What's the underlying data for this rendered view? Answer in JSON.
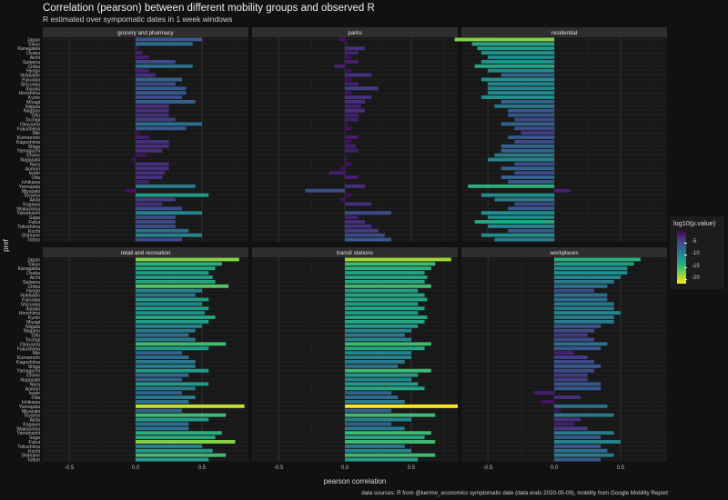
{
  "chart_data": {
    "type": "bar",
    "title": "Correlation (pearson) between different mobility groups and observed R",
    "subtitle": "R estimated over sympomatic dates in 1 week windows",
    "xlabel": "pearson correlation",
    "ylabel": "pref",
    "xlim": [
      -0.7,
      0.85
    ],
    "x_ticks": [
      -0.5,
      0.0,
      0.5
    ],
    "x_tick_labels": [
      "-0.5",
      "0.0",
      "0.5"
    ],
    "grid": true,
    "legend": {
      "title": "log10(p.value)",
      "placement": "right",
      "scale": "viridis",
      "range": [
        -22,
        0
      ],
      "ticks": [
        -5,
        -10,
        -15,
        -20
      ],
      "tick_labels": [
        "-5",
        "-10",
        "-15",
        "-20"
      ]
    },
    "caption": "data sources: R from @kenmo_economics symptomatic date (data ends 2020-05-09), mobility from Google Mobility Report",
    "categories": [
      "Japan",
      "Tokyo",
      "Kanagawa",
      "Osaka",
      "Aichi",
      "Saitama",
      "Chiba",
      "Hyogo",
      "Hokkaido",
      "Fukuoka",
      "Shizuoka",
      "Ibaraki",
      "Hiroshima",
      "Kyoto",
      "Miyagi",
      "Niigata",
      "Nagano",
      "Gifu",
      "Tochigi",
      "Okayama",
      "Fukushima",
      "Mie",
      "Kumamoto",
      "Kagoshima",
      "Shiga",
      "Yamaguchi",
      "Ehime",
      "Nagasaki",
      "Nara",
      "Aomori",
      "Iwate",
      "Oita",
      "Ishikawa",
      "Yamagata",
      "Miyazaki",
      "Toyama",
      "Akita",
      "Kagawa",
      "Wakayama",
      "Yamanashi",
      "Saga",
      "Fukui",
      "Tokushima",
      "Kochi",
      "Shimane",
      "Tottori"
    ],
    "panels": [
      {
        "name": "grocery and pharmacy",
        "values": [
          0.5,
          0.43,
          0.02,
          0.05,
          0.1,
          0.3,
          0.43,
          0.1,
          0.15,
          0.35,
          0.3,
          0.38,
          0.38,
          0.35,
          0.45,
          0.25,
          0.25,
          0.25,
          0.3,
          0.5,
          0.38,
          0.03,
          0.1,
          0.25,
          0.25,
          0.2,
          0.08,
          -0.03,
          0.25,
          0.25,
          0.22,
          0.2,
          0.1,
          0.45,
          -0.08,
          0.55,
          0.3,
          0.2,
          0.35,
          0.5,
          0.3,
          0.3,
          0.3,
          0.4,
          0.5,
          0.35
        ],
        "log10p": [
          -6,
          -8,
          -1,
          -2,
          -2,
          -5,
          -8,
          -2,
          -3,
          -7,
          -5,
          -6,
          -6,
          -5,
          -7,
          -3,
          -3,
          -3,
          -4,
          -8,
          -6,
          -1,
          -2,
          -3,
          -3,
          -3,
          -1,
          -1,
          -3,
          -3,
          -3,
          -3,
          -2,
          -9,
          -1,
          -12,
          -4,
          -3,
          -5,
          -10,
          -5,
          -5,
          -5,
          -8,
          -10,
          -5
        ]
      },
      {
        "name": "parks",
        "values": [
          -0.05,
          0.02,
          0.15,
          0.1,
          0.05,
          0.1,
          -0.08,
          0.05,
          0.2,
          0.05,
          0.1,
          0.25,
          0.05,
          0.2,
          0.15,
          0.12,
          0.15,
          0.1,
          0.1,
          0.02,
          0.05,
          0.0,
          0.1,
          0.05,
          0.08,
          0.1,
          0.0,
          0.02,
          0.05,
          -0.03,
          -0.12,
          0.1,
          0.0,
          0.15,
          -0.3,
          0.05,
          -0.03,
          0.2,
          0.0,
          0.35,
          0.1,
          0.15,
          0.2,
          0.25,
          0.3,
          0.35
        ],
        "log10p": [
          -1,
          -1,
          -3,
          -2,
          -1,
          -2,
          -2,
          -1,
          -3,
          -1,
          -2,
          -4,
          -1,
          -3,
          -3,
          -2,
          -3,
          -2,
          -2,
          -1,
          -1,
          -1,
          -2,
          -1,
          -2,
          -2,
          -1,
          -1,
          -1,
          -1,
          -2,
          -2,
          -1,
          -3,
          -5,
          -1,
          -1,
          -3,
          -1,
          -5,
          -2,
          -3,
          -3,
          -4,
          -5,
          -6
        ]
      },
      {
        "name": "residential",
        "values": [
          -0.75,
          -0.62,
          -0.58,
          -0.55,
          -0.5,
          -0.55,
          -0.6,
          -0.5,
          -0.4,
          -0.55,
          -0.5,
          -0.5,
          -0.5,
          -0.55,
          -0.4,
          -0.45,
          -0.35,
          -0.35,
          -0.3,
          -0.4,
          -0.3,
          -0.25,
          -0.35,
          -0.3,
          -0.4,
          -0.4,
          -0.45,
          -0.5,
          -0.3,
          -0.4,
          -0.3,
          -0.4,
          -0.35,
          -0.65,
          0.12,
          -0.55,
          -0.45,
          -0.3,
          -0.35,
          -0.55,
          -0.5,
          -0.6,
          -0.5,
          -0.35,
          -0.55,
          -0.45
        ],
        "log10p": [
          -18,
          -13,
          -12,
          -11,
          -10,
          -11,
          -13,
          -10,
          -7,
          -11,
          -10,
          -10,
          -10,
          -11,
          -7,
          -9,
          -6,
          -6,
          -5,
          -7,
          -5,
          -4,
          -6,
          -5,
          -7,
          -7,
          -9,
          -10,
          -5,
          -7,
          -5,
          -7,
          -6,
          -14,
          -2,
          -11,
          -9,
          -5,
          -6,
          -11,
          -10,
          -13,
          -10,
          -6,
          -11,
          -9
        ]
      },
      {
        "name": "retail and recreation",
        "values": [
          0.78,
          0.65,
          0.6,
          0.55,
          0.58,
          0.6,
          0.7,
          0.5,
          0.45,
          0.55,
          0.5,
          0.55,
          0.52,
          0.6,
          0.55,
          0.5,
          0.45,
          0.4,
          0.45,
          0.68,
          0.55,
          0.35,
          0.4,
          0.45,
          0.45,
          0.55,
          0.4,
          0.35,
          0.55,
          0.45,
          0.35,
          0.45,
          0.4,
          0.82,
          0.35,
          0.68,
          0.55,
          0.4,
          0.4,
          0.65,
          0.6,
          0.75,
          0.5,
          0.58,
          0.68,
          0.55
        ],
        "log10p": [
          -18,
          -14,
          -13,
          -12,
          -12,
          -13,
          -16,
          -10,
          -9,
          -12,
          -10,
          -12,
          -11,
          -13,
          -12,
          -10,
          -9,
          -8,
          -9,
          -15,
          -12,
          -7,
          -8,
          -9,
          -9,
          -12,
          -8,
          -7,
          -12,
          -9,
          -7,
          -9,
          -8,
          -20,
          -7,
          -15,
          -12,
          -8,
          -8,
          -14,
          -13,
          -18,
          -10,
          -12,
          -15,
          -12
        ]
      },
      {
        "name": "transit stations",
        "values": [
          0.8,
          0.68,
          0.65,
          0.6,
          0.62,
          0.6,
          0.65,
          0.55,
          0.6,
          0.62,
          0.55,
          0.6,
          0.55,
          0.62,
          0.6,
          0.55,
          0.5,
          0.45,
          0.5,
          0.65,
          0.6,
          0.5,
          0.5,
          0.45,
          0.4,
          0.65,
          0.55,
          0.5,
          0.55,
          0.6,
          0.35,
          0.4,
          0.45,
          0.85,
          0.35,
          0.68,
          0.5,
          0.35,
          0.45,
          0.65,
          0.6,
          0.68,
          0.45,
          0.5,
          0.68,
          0.55
        ],
        "log10p": [
          -19,
          -15,
          -14,
          -13,
          -13,
          -13,
          -15,
          -12,
          -13,
          -13,
          -12,
          -13,
          -12,
          -13,
          -13,
          -12,
          -10,
          -9,
          -10,
          -15,
          -13,
          -10,
          -10,
          -9,
          -8,
          -15,
          -12,
          -10,
          -12,
          -13,
          -7,
          -8,
          -9,
          -22,
          -7,
          -15,
          -10,
          -7,
          -9,
          -15,
          -13,
          -15,
          -9,
          -10,
          -15,
          -12
        ]
      },
      {
        "name": "workplaces",
        "values": [
          0.65,
          0.6,
          0.55,
          0.55,
          0.5,
          0.45,
          0.4,
          0.3,
          0.4,
          0.4,
          0.45,
          0.45,
          0.5,
          0.45,
          0.45,
          0.35,
          0.3,
          0.25,
          0.3,
          0.4,
          0.35,
          0.15,
          0.25,
          0.3,
          0.35,
          0.3,
          0.25,
          0.25,
          0.35,
          0.35,
          -0.15,
          0.2,
          -0.1,
          0.4,
          0.05,
          0.45,
          0.2,
          0.15,
          0.25,
          0.45,
          0.35,
          0.5,
          0.35,
          0.4,
          0.45,
          0.35
        ],
        "log10p": [
          -14,
          -12,
          -11,
          -11,
          -10,
          -9,
          -8,
          -5,
          -8,
          -8,
          -9,
          -9,
          -10,
          -9,
          -9,
          -6,
          -5,
          -4,
          -5,
          -8,
          -6,
          -2,
          -4,
          -5,
          -6,
          -5,
          -4,
          -4,
          -6,
          -6,
          -2,
          -3,
          -1,
          -8,
          -1,
          -9,
          -3,
          -2,
          -4,
          -9,
          -6,
          -10,
          -6,
          -8,
          -9,
          -6
        ]
      }
    ]
  }
}
